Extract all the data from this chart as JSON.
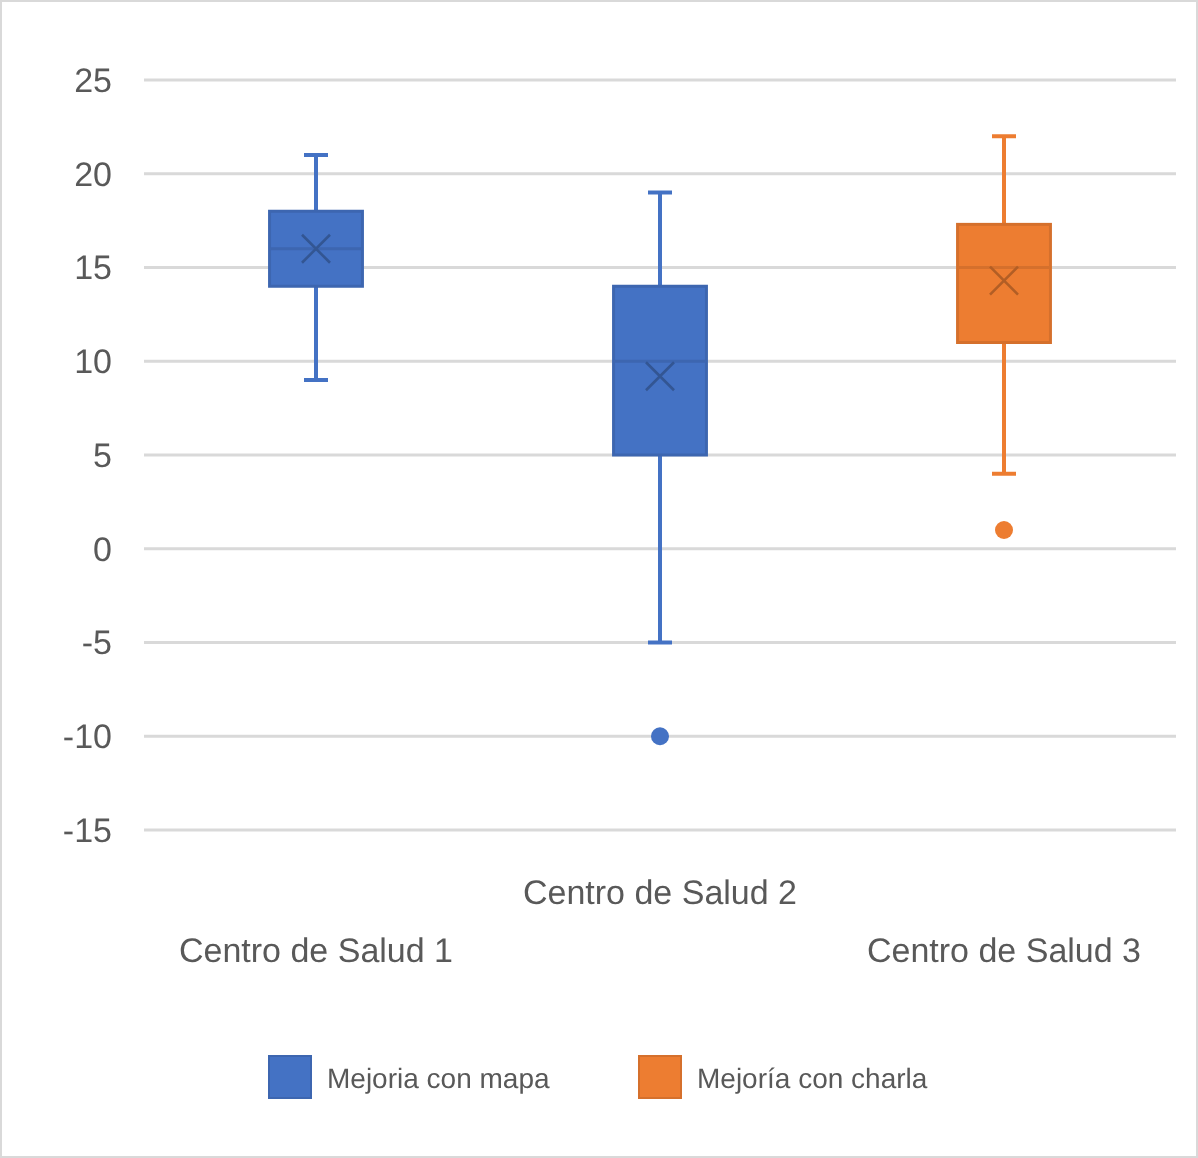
{
  "chart_data": {
    "type": "box",
    "categories": [
      "Centro de Salud 1",
      "Centro de Salud 2",
      "Centro de Salud 3"
    ],
    "series": [
      {
        "name": "Mejoria con mapa",
        "color": "#4472c4",
        "boxes": [
          {
            "low": 9,
            "q1": 14,
            "median": 16,
            "q3": 18,
            "high": 21,
            "mean": 16
          },
          {
            "low": -5,
            "q1": 5,
            "median": 10,
            "q3": 14,
            "high": 19,
            "mean": 9.2,
            "outliers": [
              -10
            ]
          },
          null
        ]
      },
      {
        "name": "Mejoría con charla",
        "color": "#ed7d31",
        "boxes": [
          null,
          null,
          {
            "low": 4,
            "q1": 11,
            "median": 15,
            "q3": 17.3,
            "high": 22,
            "mean": 14.3,
            "outliers": [
              1
            ]
          }
        ]
      }
    ],
    "ylim": [
      -15,
      25
    ],
    "yticks": [
      -15,
      -10,
      -5,
      0,
      5,
      10,
      15,
      20,
      25
    ],
    "grid": "y",
    "legend": "bottom",
    "marker": "cross"
  }
}
